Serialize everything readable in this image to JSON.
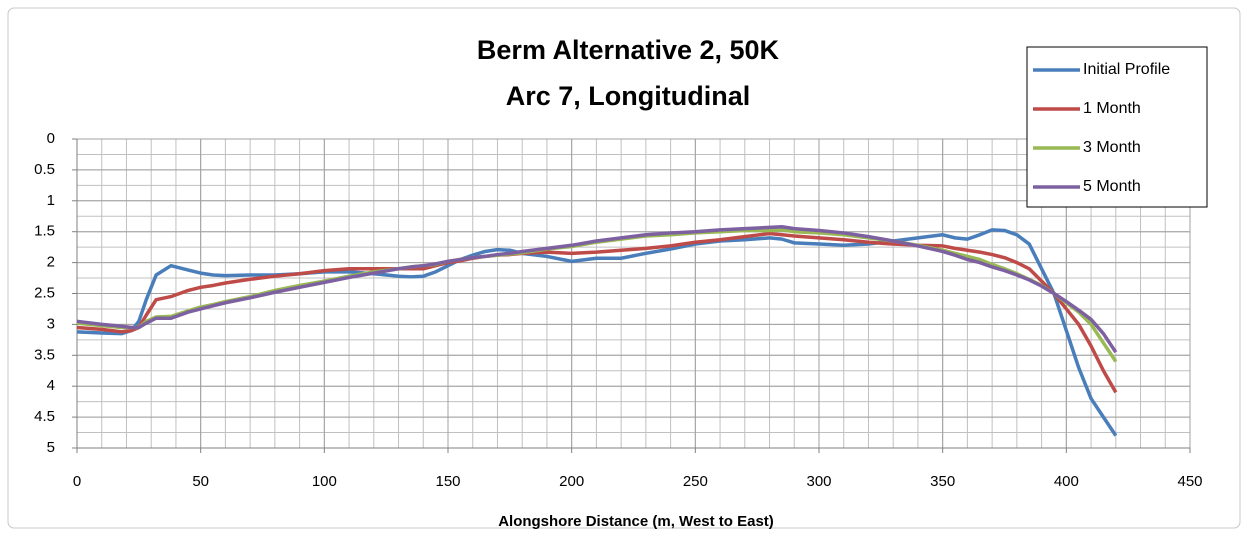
{
  "chart_data": {
    "type": "line",
    "title": "Berm Alternative 2, 50K",
    "subtitle": "Arc 7, Longitudinal",
    "x_label": "Alongshore Distance  (m, West to East)",
    "xlim": [
      0,
      450
    ],
    "xticks": [
      0,
      50,
      100,
      150,
      200,
      250,
      300,
      350,
      400,
      450
    ],
    "ylim": [
      0,
      5
    ],
    "yticks": [
      0,
      0.5,
      1,
      1.5,
      2,
      2.5,
      3,
      3.5,
      4,
      4.5,
      5
    ],
    "y_inverted": true,
    "grid": true,
    "minor_grid": {
      "x": 10,
      "y": 0.25
    },
    "legend": "top-right",
    "x": [
      0,
      10,
      18,
      22,
      25,
      28,
      32,
      38,
      45,
      50,
      55,
      60,
      70,
      80,
      90,
      100,
      110,
      120,
      130,
      135,
      140,
      145,
      150,
      155,
      160,
      165,
      170,
      175,
      180,
      190,
      200,
      210,
      220,
      230,
      240,
      250,
      260,
      270,
      280,
      285,
      290,
      300,
      310,
      320,
      330,
      340,
      350,
      355,
      360,
      365,
      370,
      375,
      380,
      385,
      390,
      395,
      400,
      405,
      410,
      415,
      420
    ],
    "series": [
      {
        "name": "Initial Profile",
        "color": "#4a7ebb",
        "values": [
          3.12,
          3.14,
          3.15,
          3.1,
          2.95,
          2.6,
          2.2,
          2.05,
          2.12,
          2.17,
          2.2,
          2.21,
          2.2,
          2.2,
          2.18,
          2.15,
          2.15,
          2.18,
          2.22,
          2.23,
          2.22,
          2.15,
          2.05,
          1.95,
          1.88,
          1.82,
          1.79,
          1.8,
          1.85,
          1.9,
          1.98,
          1.93,
          1.93,
          1.85,
          1.78,
          1.7,
          1.65,
          1.63,
          1.6,
          1.62,
          1.68,
          1.7,
          1.72,
          1.7,
          1.65,
          1.6,
          1.55,
          1.6,
          1.62,
          1.55,
          1.47,
          1.48,
          1.55,
          1.7,
          2.1,
          2.5,
          3.1,
          3.7,
          4.2,
          4.5,
          4.8
        ]
      },
      {
        "name": "1 Month",
        "color": "#be4b48",
        "values": [
          3.05,
          3.08,
          3.12,
          3.1,
          3.05,
          2.85,
          2.6,
          2.55,
          2.45,
          2.4,
          2.37,
          2.33,
          2.27,
          2.22,
          2.18,
          2.13,
          2.1,
          2.1,
          2.1,
          2.1,
          2.1,
          2.05,
          2.0,
          1.97,
          1.93,
          1.9,
          1.88,
          1.87,
          1.85,
          1.83,
          1.85,
          1.83,
          1.8,
          1.77,
          1.73,
          1.67,
          1.63,
          1.58,
          1.53,
          1.55,
          1.57,
          1.6,
          1.63,
          1.67,
          1.7,
          1.72,
          1.73,
          1.77,
          1.8,
          1.83,
          1.87,
          1.92,
          2.0,
          2.1,
          2.3,
          2.5,
          2.75,
          3.0,
          3.35,
          3.75,
          4.1
        ]
      },
      {
        "name": "3 Month",
        "color": "#98b954",
        "values": [
          2.98,
          3.02,
          3.05,
          3.05,
          3.05,
          2.95,
          2.88,
          2.87,
          2.78,
          2.72,
          2.68,
          2.63,
          2.55,
          2.45,
          2.37,
          2.3,
          2.22,
          2.15,
          2.1,
          2.07,
          2.05,
          2.03,
          1.98,
          1.95,
          1.92,
          1.9,
          1.88,
          1.86,
          1.84,
          1.78,
          1.74,
          1.67,
          1.62,
          1.57,
          1.55,
          1.52,
          1.5,
          1.48,
          1.48,
          1.47,
          1.5,
          1.52,
          1.55,
          1.6,
          1.65,
          1.72,
          1.8,
          1.85,
          1.9,
          1.95,
          2.03,
          2.1,
          2.18,
          2.27,
          2.37,
          2.5,
          2.65,
          2.8,
          3.0,
          3.3,
          3.6
        ]
      },
      {
        "name": "5 Month",
        "color": "#7d60a0",
        "values": [
          2.95,
          3.0,
          3.03,
          3.05,
          3.05,
          2.98,
          2.9,
          2.9,
          2.8,
          2.75,
          2.7,
          2.65,
          2.57,
          2.48,
          2.4,
          2.32,
          2.24,
          2.17,
          2.1,
          2.07,
          2.05,
          2.02,
          1.98,
          1.95,
          1.92,
          1.9,
          1.87,
          1.85,
          1.82,
          1.77,
          1.72,
          1.65,
          1.6,
          1.55,
          1.52,
          1.5,
          1.47,
          1.45,
          1.43,
          1.42,
          1.45,
          1.48,
          1.52,
          1.58,
          1.65,
          1.73,
          1.82,
          1.88,
          1.95,
          2.0,
          2.07,
          2.13,
          2.2,
          2.28,
          2.38,
          2.5,
          2.63,
          2.77,
          2.92,
          3.15,
          3.45
        ]
      }
    ]
  }
}
